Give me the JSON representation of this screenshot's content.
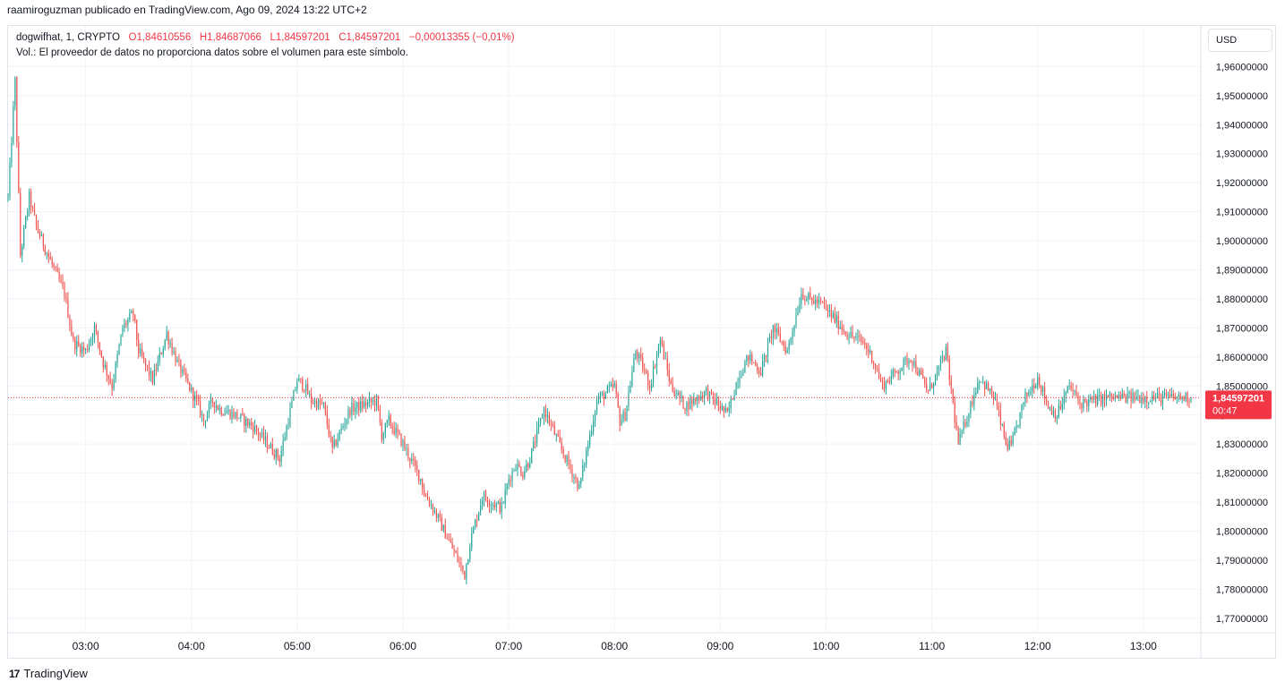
{
  "header": {
    "text": "raamiroguzman publicado en TradingView.com, Ago 09, 2024 13:22 UTC+2"
  },
  "legend": {
    "symbol": "dogwifhat, 1, CRYPTO",
    "open": "O1,84610556",
    "high": "H1,84687066",
    "low": "L1,84597201",
    "close": "C1,84597201",
    "change": "−0,00013355 (−0,01%)",
    "volume_note": "Vol.: El proveedor de datos no proporciona datos sobre el volumen para este símbolo."
  },
  "currency_button": "USD",
  "footer": {
    "logo_text": "17",
    "brand": "TradingView"
  },
  "colors": {
    "up": "#26a69a",
    "down": "#ef5350",
    "last_price_bg": "#f23645",
    "grid": "#f0f3fa"
  },
  "chart_data": {
    "type": "candlestick",
    "y_ticks": [
      "1,96000000",
      "1,95000000",
      "1,94000000",
      "1,93000000",
      "1,92000000",
      "1,91000000",
      "1,90000000",
      "1,89000000",
      "1,88000000",
      "1,87000000",
      "1,86000000",
      "1,85000000",
      "1,84000000",
      "1,83000000",
      "1,82000000",
      "1,81000000",
      "1,80000000",
      "1,79000000",
      "1,78000000",
      "1,77000000"
    ],
    "y_tick_values": [
      1.96,
      1.95,
      1.94,
      1.93,
      1.92,
      1.91,
      1.9,
      1.89,
      1.88,
      1.87,
      1.86,
      1.85,
      1.84,
      1.83,
      1.82,
      1.81,
      1.8,
      1.79,
      1.78,
      1.77
    ],
    "x_ticks": [
      "03:00",
      "04:00",
      "05:00",
      "06:00",
      "07:00",
      "08:00",
      "09:00",
      "10:00",
      "11:00",
      "12:00",
      "13:00"
    ],
    "x_tick_minutes": [
      180,
      240,
      300,
      360,
      420,
      480,
      540,
      600,
      660,
      720,
      780
    ],
    "x_range_minutes": [
      136,
      807
    ],
    "ylim": [
      1.765,
      1.974
    ],
    "last_price": {
      "value": 1.84597201,
      "label": "1,84597201",
      "countdown": "00:47"
    },
    "price_path": {
      "t": [
        136,
        140,
        143,
        148,
        152,
        160,
        168,
        173,
        180,
        185,
        190,
        195,
        201,
        207,
        210,
        218,
        226,
        232,
        240,
        244,
        247,
        252,
        256,
        265,
        275,
        290,
        300,
        304,
        308,
        315,
        320,
        330,
        345,
        348,
        352,
        360,
        370,
        372,
        377,
        385,
        395,
        398,
        405,
        410,
        416,
        420,
        424,
        428,
        432,
        440,
        450,
        460,
        470,
        480,
        483,
        486,
        492,
        497,
        500,
        506,
        512,
        520,
        532,
        544,
        550,
        556,
        563,
        570,
        578,
        586,
        590,
        598,
        612,
        621,
        626,
        632,
        648,
        658,
        664,
        668,
        675,
        687,
        696,
        702,
        705,
        710,
        713,
        720,
        726,
        731,
        738,
        744,
        752,
        760,
        770,
        778,
        790,
        798,
        807
      ],
      "close": [
        1.915,
        1.955,
        1.895,
        1.915,
        1.905,
        1.893,
        1.882,
        1.865,
        1.862,
        1.87,
        1.858,
        1.85,
        1.87,
        1.875,
        1.862,
        1.852,
        1.868,
        1.858,
        1.848,
        1.843,
        1.838,
        1.845,
        1.842,
        1.84,
        1.836,
        1.825,
        1.852,
        1.85,
        1.845,
        1.843,
        1.828,
        1.842,
        1.845,
        1.833,
        1.838,
        1.83,
        1.818,
        1.813,
        1.808,
        1.798,
        1.785,
        1.796,
        1.812,
        1.81,
        1.808,
        1.818,
        1.823,
        1.82,
        1.825,
        1.842,
        1.828,
        1.815,
        1.845,
        1.85,
        1.838,
        1.84,
        1.862,
        1.855,
        1.85,
        1.866,
        1.85,
        1.843,
        1.848,
        1.84,
        1.853,
        1.86,
        1.855,
        1.87,
        1.862,
        1.882,
        1.88,
        1.878,
        1.868,
        1.865,
        1.86,
        1.85,
        1.86,
        1.848,
        1.856,
        1.862,
        1.83,
        1.853,
        1.845,
        1.83,
        1.829,
        1.84,
        1.846,
        1.853,
        1.843,
        1.84,
        1.85,
        1.844,
        1.845,
        1.846,
        1.846,
        1.846,
        1.846,
        1.846,
        1.846
      ]
    }
  }
}
